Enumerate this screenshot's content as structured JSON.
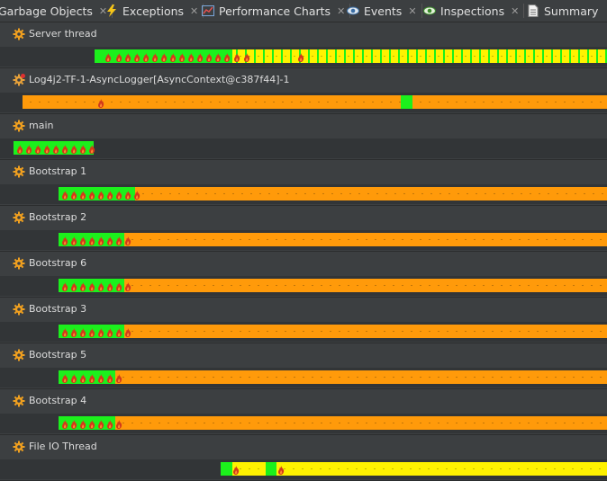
{
  "tabs": [
    {
      "label": "Garbage Objects",
      "icon": "none"
    },
    {
      "label": "Exceptions",
      "icon": "lightning-icon"
    },
    {
      "label": "Performance Charts",
      "icon": "chart-icon"
    },
    {
      "label": "Events",
      "icon": "eye-icon"
    },
    {
      "label": "Inspections",
      "icon": "eye-green-icon"
    },
    {
      "label": "Summary",
      "icon": "document-icon"
    }
  ],
  "threads": [
    {
      "name": "Server thread",
      "gear": "orange",
      "start": 105,
      "segments": [
        [
          "g",
          105,
          258
        ],
        [
          "y",
          258,
          674
        ]
      ],
      "flames": [
        116,
        128,
        138,
        148,
        158,
        168,
        178,
        188,
        198,
        208,
        218,
        228,
        238,
        248,
        259,
        270,
        330
      ]
    },
    {
      "name": "Log4j2-TF-1-AsyncLogger[AsyncContext@c387f44]-1",
      "gear": "red",
      "start": 25,
      "segments": [
        [
          "o",
          25,
          445
        ],
        [
          "g",
          445,
          458
        ],
        [
          "o",
          458,
          674
        ]
      ],
      "flames": [
        108
      ]
    },
    {
      "name": "main",
      "gear": "orange",
      "start": 15,
      "segments": [
        [
          "g",
          15,
          104
        ]
      ],
      "flames": [
        18,
        28,
        38,
        48,
        58,
        68,
        78,
        88,
        98
      ]
    },
    {
      "name": "Bootstrap 1",
      "gear": "orange",
      "start": 65,
      "segments": [
        [
          "g",
          65,
          150
        ],
        [
          "o",
          150,
          674
        ]
      ],
      "flames": [
        68,
        78,
        88,
        98,
        108,
        118,
        128,
        138,
        148
      ]
    },
    {
      "name": "Bootstrap 2",
      "gear": "orange",
      "start": 65,
      "segments": [
        [
          "g",
          65,
          138
        ],
        [
          "o",
          138,
          674
        ]
      ],
      "flames": [
        68,
        78,
        88,
        98,
        108,
        118,
        128,
        138
      ]
    },
    {
      "name": "Bootstrap 6",
      "gear": "orange",
      "start": 65,
      "segments": [
        [
          "g",
          65,
          138
        ],
        [
          "o",
          138,
          674
        ]
      ],
      "flames": [
        68,
        78,
        88,
        98,
        108,
        118,
        128,
        138
      ]
    },
    {
      "name": "Bootstrap 3",
      "gear": "orange",
      "start": 65,
      "segments": [
        [
          "g",
          65,
          138
        ],
        [
          "o",
          138,
          674
        ]
      ],
      "flames": [
        68,
        78,
        88,
        98,
        108,
        118,
        128,
        138
      ]
    },
    {
      "name": "Bootstrap 5",
      "gear": "orange",
      "start": 65,
      "segments": [
        [
          "g",
          65,
          128
        ],
        [
          "o",
          128,
          674
        ]
      ],
      "flames": [
        68,
        78,
        88,
        98,
        108,
        118,
        128
      ]
    },
    {
      "name": "Bootstrap 4",
      "gear": "orange",
      "start": 65,
      "segments": [
        [
          "g",
          65,
          128
        ],
        [
          "o",
          128,
          674
        ]
      ],
      "flames": [
        68,
        78,
        88,
        98,
        108,
        118,
        128
      ]
    },
    {
      "name": "File IO Thread",
      "gear": "orange",
      "start": 245,
      "segments": [
        [
          "g",
          245,
          258
        ],
        [
          "y",
          258,
          295
        ],
        [
          "g",
          295,
          307
        ],
        [
          "y",
          307,
          674
        ]
      ],
      "flames": [
        258,
        308
      ]
    }
  ]
}
